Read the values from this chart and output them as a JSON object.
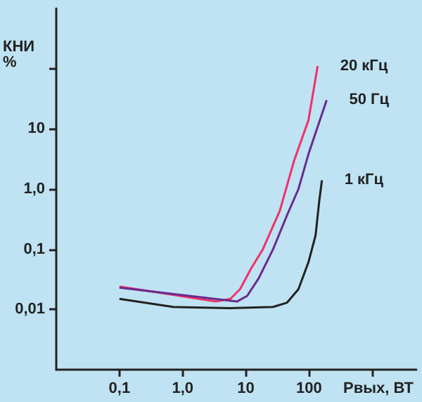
{
  "chart_data": {
    "type": "line",
    "xlabel": "Pвых, ВТ",
    "ylabel": "КНИ %",
    "log": "xy",
    "grid": false,
    "legend": false,
    "marker": "none",
    "xlim": [
      0.01,
      5000
    ],
    "xticks": [
      {
        "value": 0.1,
        "label": "0,1"
      },
      {
        "value": 1,
        "label": "1,0"
      },
      10,
      100,
      {
        "value": 1000,
        "label": null
      }
    ],
    "ylim": [
      0.001,
      1000
    ],
    "yticks": [
      {
        "value": 0.01,
        "label": "0,01"
      },
      {
        "value": 0.1,
        "label": "0,1"
      },
      {
        "value": 1,
        "label": "1,0"
      },
      10,
      {
        "value": 100,
        "label": null
      }
    ],
    "series": [
      {
        "name": "20 кГц",
        "color": "#f0306a",
        "x": [
          0.1,
          3.4,
          5.7,
          8.1,
          12,
          18.6,
          34.6,
          58,
          98,
          137
        ],
        "values": [
          0.024,
          0.0136,
          0.015,
          0.0217,
          0.047,
          0.1,
          0.44,
          2.95,
          13.9,
          110
        ]
      },
      {
        "name": "50 Гц",
        "color": "#6a2a8e",
        "x": [
          0.1,
          7.3,
          10.5,
          16,
          27,
          45,
          68,
          98,
          190
        ],
        "values": [
          0.023,
          0.0136,
          0.0168,
          0.033,
          0.1,
          0.37,
          1.0,
          3.8,
          30
        ]
      },
      {
        "name": "1 кГц",
        "color": "#222222",
        "x": [
          0.1,
          0.71,
          5.6,
          27,
          45,
          68,
          98,
          127,
          145,
          160
        ],
        "values": [
          0.015,
          0.011,
          0.0105,
          0.011,
          0.013,
          0.0217,
          0.061,
          0.17,
          0.63,
          1.4
        ]
      }
    ]
  }
}
